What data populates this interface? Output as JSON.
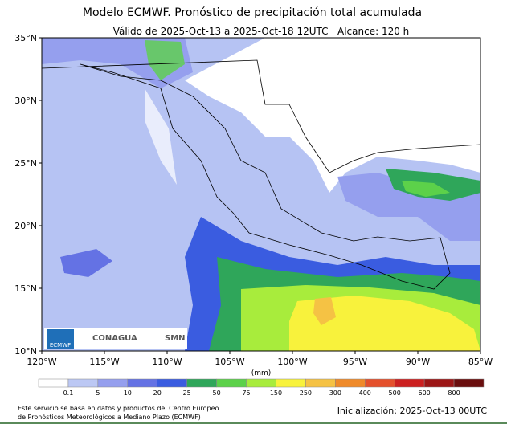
{
  "header": {
    "title": "Modelo ECMWF. Pronóstico de precipitación total acumulada",
    "subtitle": "Válido de 2025-Oct-13 a 2025-Oct-18 12UTC   Alcance: 120 h"
  },
  "map": {
    "lat_labels": [
      "35°N",
      "30°N",
      "25°N",
      "20°N",
      "15°N",
      "10°N"
    ],
    "lon_labels": [
      "120°W",
      "115°W",
      "110°W",
      "105°W",
      "100°W",
      "95°W",
      "90°W",
      "85°W"
    ]
  },
  "logos": {
    "ecmwf": "ECMWF",
    "conagua": "CONAGUA",
    "smn": "SMN"
  },
  "colorbar": {
    "unit": "(mm)",
    "labels": [
      "0.1",
      "5",
      "10",
      "20",
      "25",
      "50",
      "75",
      "150",
      "250",
      "300",
      "400",
      "500",
      "600",
      "800"
    ],
    "colors": [
      "#ffffff",
      "#bcc8f4",
      "#959fee",
      "#6472e4",
      "#3a5ce0",
      "#2fa65a",
      "#5cd14a",
      "#a8ec3c",
      "#f8f23c",
      "#f5c244",
      "#ef8a2a",
      "#e4502c",
      "#cc2020",
      "#9c1616",
      "#6a0e0e"
    ]
  },
  "footer": {
    "source_line1": "Este servicio se basa en datos y productos del Centro Europeo",
    "source_line2": "de Pronósticos Meteorológicos a Mediano Plazo (ECMWF)",
    "init": "Inicialización: 2025-Oct-13 00UTC"
  }
}
